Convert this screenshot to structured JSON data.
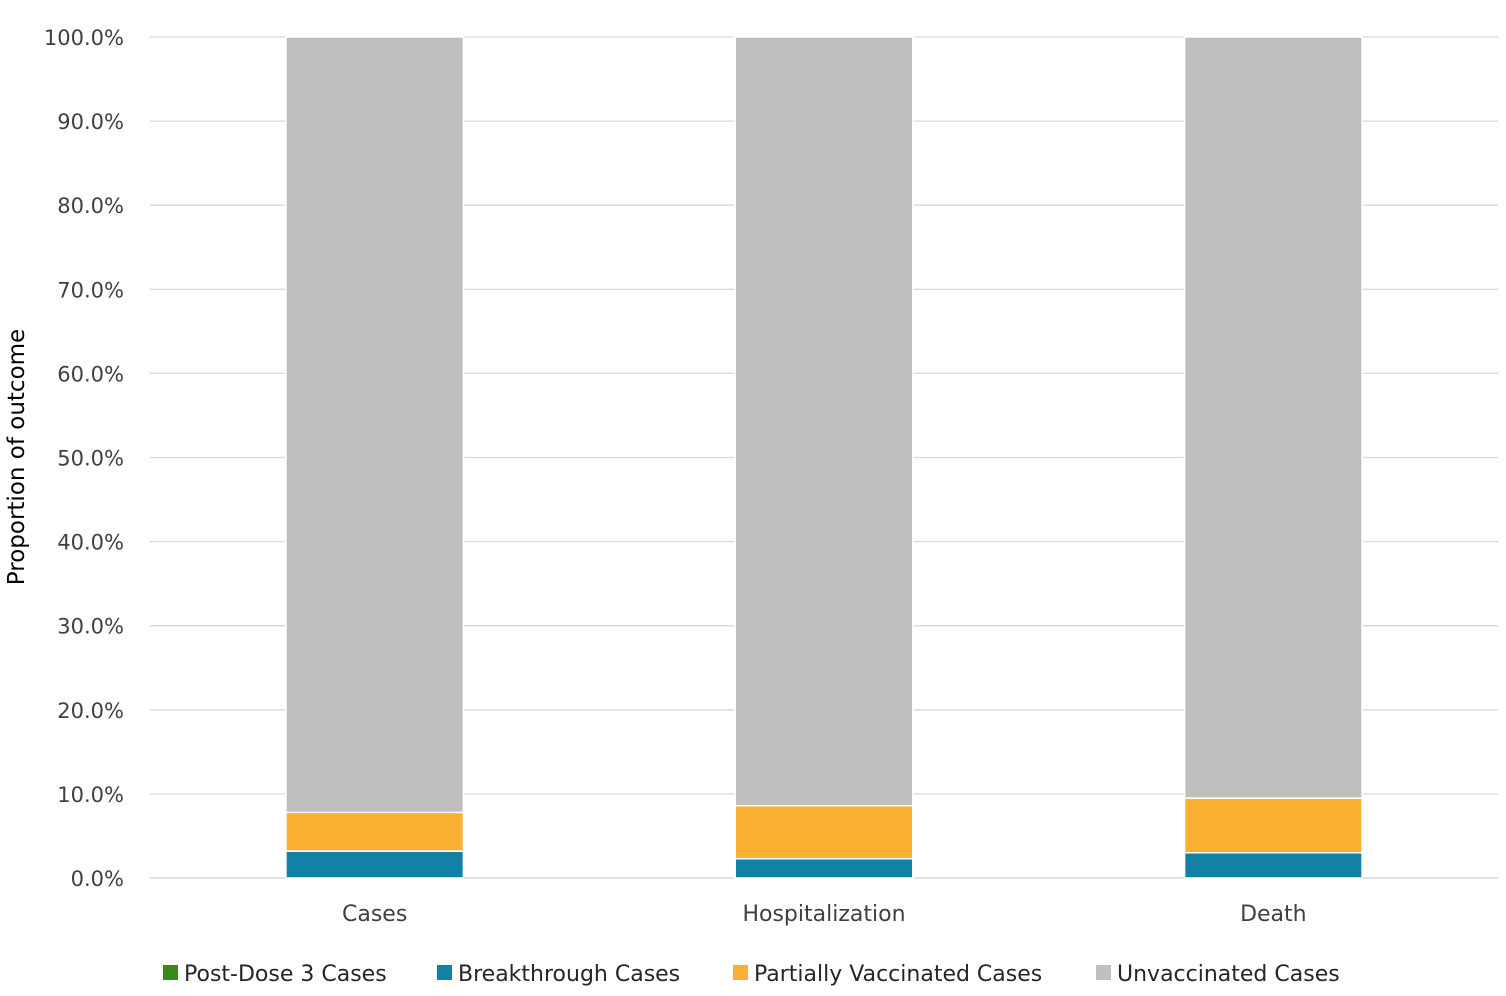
{
  "chart_data": {
    "type": "bar",
    "stacked": true,
    "percent": true,
    "categories": [
      "Cases",
      "Hospitalization",
      "Death"
    ],
    "series": [
      {
        "name": "Post-Dose 3 Cases",
        "color": "#3a8a1a",
        "values": [
          0.0,
          0.0,
          0.0
        ]
      },
      {
        "name": "Breakthrough Cases",
        "color": "#1380a6",
        "values": [
          3.2,
          2.3,
          3.0
        ]
      },
      {
        "name": "Partially Vaccinated Cases",
        "color": "#fbb034",
        "values": [
          4.6,
          6.3,
          6.5
        ]
      },
      {
        "name": "Unvaccinated Cases",
        "color": "#bfbfbf",
        "values": [
          92.2,
          91.4,
          90.5
        ]
      }
    ],
    "yticks": [
      "0.0%",
      "10.0%",
      "20.0%",
      "30.0%",
      "40.0%",
      "50.0%",
      "60.0%",
      "70.0%",
      "80.0%",
      "90.0%",
      "100.0%"
    ],
    "ylim": [
      0,
      100
    ],
    "xlabel": "",
    "ylabel": "Proportion of outcome",
    "grid": true,
    "legend_position": "bottom"
  }
}
